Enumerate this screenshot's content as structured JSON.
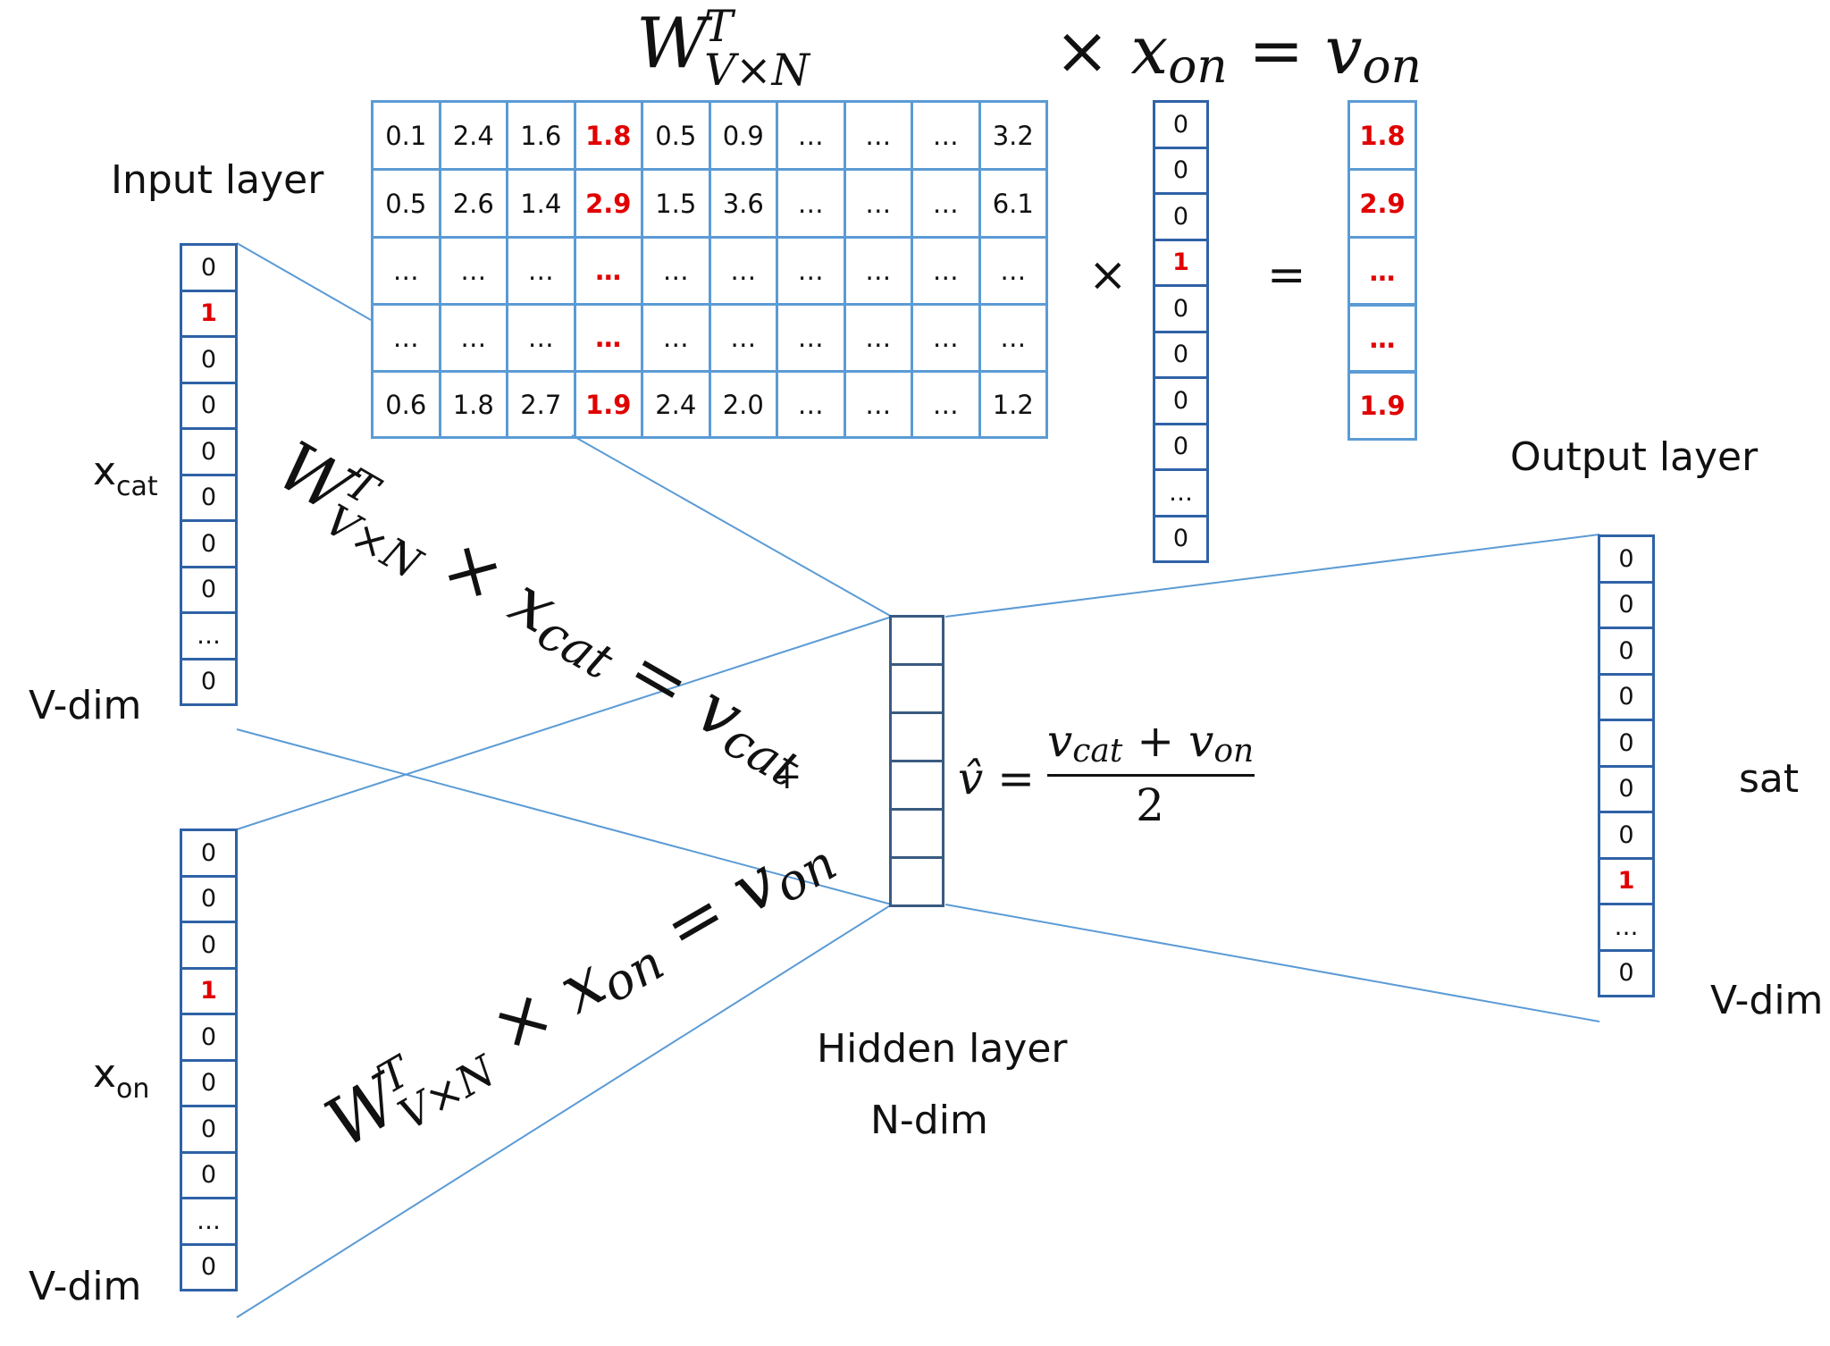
{
  "weight_matrix": {
    "title": {
      "base": "W",
      "sup": "T",
      "sub": "V×N"
    },
    "rows": [
      [
        "0.1",
        "2.4",
        "1.6",
        "1.8",
        "0.5",
        "0.9",
        "…",
        "…",
        "…",
        "3.2"
      ],
      [
        "0.5",
        "2.6",
        "1.4",
        "2.9",
        "1.5",
        "3.6",
        "…",
        "…",
        "…",
        "6.1"
      ],
      [
        "…",
        "…",
        "…",
        "…",
        "…",
        "…",
        "…",
        "…",
        "…",
        "…"
      ],
      [
        "…",
        "…",
        "…",
        "…",
        "…",
        "…",
        "…",
        "…",
        "…",
        "…"
      ],
      [
        "0.6",
        "1.8",
        "2.7",
        "1.9",
        "2.4",
        "2.0",
        "…",
        "…",
        "…",
        "1.2"
      ]
    ],
    "highlight_column": 3
  },
  "top_equation": {
    "times": "×",
    "x": "x",
    "x_sub": "on",
    "equals": "=",
    "v": "v",
    "v_sub": "on"
  },
  "mult_symbol": "×",
  "equals_symbol": "=",
  "x_on_top_vector": [
    "0",
    "0",
    "0",
    "1",
    "0",
    "0",
    "0",
    "0",
    "…",
    "0"
  ],
  "x_on_top_highlight": 3,
  "result_vector": [
    "1.8",
    "2.9",
    "…",
    "…",
    "1.9"
  ],
  "input_layer": {
    "label": "Input layer",
    "x_cat": {
      "base": "x",
      "sub": "cat",
      "values": [
        "0",
        "1",
        "0",
        "0",
        "0",
        "0",
        "0",
        "0",
        "…",
        "0"
      ],
      "highlight": 1
    },
    "x_on": {
      "base": "x",
      "sub": "on",
      "values": [
        "0",
        "0",
        "0",
        "1",
        "0",
        "0",
        "0",
        "0",
        "…",
        "0"
      ],
      "highlight": 3
    },
    "vdim_label": "V-dim"
  },
  "hidden_layer": {
    "label": "Hidden layer",
    "dim_label": "N-dim",
    "cells": 6
  },
  "output_layer": {
    "label": "Output layer",
    "word": "sat",
    "vdim_label": "V-dim",
    "values": [
      "0",
      "0",
      "0",
      "0",
      "0",
      "0",
      "0",
      "1",
      "…",
      "0"
    ],
    "highlight": 7
  },
  "equation_cat": {
    "w": "W",
    "sup": "T",
    "sub": "V×N",
    "times": "×",
    "x": "x",
    "x_sub": "cat",
    "equals": "=",
    "v": "v",
    "v_sub": "cat"
  },
  "plus_sign": "+",
  "equation_on": {
    "w": "W",
    "sup": "T",
    "sub": "V×N",
    "times": "×",
    "x": "x",
    "x_sub": "on",
    "equals": "=",
    "v": "v",
    "v_sub": "on"
  },
  "average_formula": {
    "lhs": "v̂",
    "equals": "=",
    "num_v1": "v",
    "num_v1_sub": "cat",
    "plus": "+",
    "num_v2": "v",
    "num_v2_sub": "on",
    "den": "2"
  }
}
